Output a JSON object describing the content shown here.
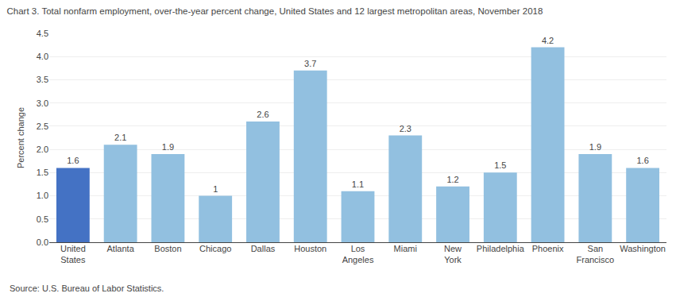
{
  "chart_data": {
    "type": "bar",
    "title": "Chart 3. Total nonfarm employment, over-the-year percent change, United States and 12 largest metropolitan areas, November 2018",
    "ylabel": "Percent change",
    "annotations": [
      "Source: U.S. Bureau of Labor Statistics."
    ],
    "categories": [
      "United\nStates",
      "Atlanta",
      "Boston",
      "Chicago",
      "Dallas",
      "Houston",
      "Los\nAngeles",
      "Miami",
      "New\nYork",
      "Philadelphia",
      "Phoenix",
      "San\nFrancisco",
      "Washington"
    ],
    "values": [
      1.6,
      2.1,
      1.9,
      1.0,
      2.6,
      3.7,
      1.1,
      2.3,
      1.2,
      1.5,
      4.2,
      1.9,
      1.6
    ],
    "colors": [
      "#4472c4",
      "#92c0e0",
      "#92c0e0",
      "#92c0e0",
      "#92c0e0",
      "#92c0e0",
      "#92c0e0",
      "#92c0e0",
      "#92c0e0",
      "#92c0e0",
      "#92c0e0",
      "#92c0e0",
      "#92c0e0"
    ],
    "ylim": [
      0,
      4.5
    ],
    "yticks": [
      {
        "value": 0,
        "label": "0.0"
      },
      0.5,
      {
        "value": 1,
        "label": "1.0"
      },
      1.5,
      {
        "value": 2,
        "label": "2.0"
      },
      2.5,
      {
        "value": 3,
        "label": "3.0"
      },
      3.5,
      {
        "value": 4,
        "label": "4.0"
      },
      4.5
    ],
    "grid": true,
    "data_labels": true
  }
}
